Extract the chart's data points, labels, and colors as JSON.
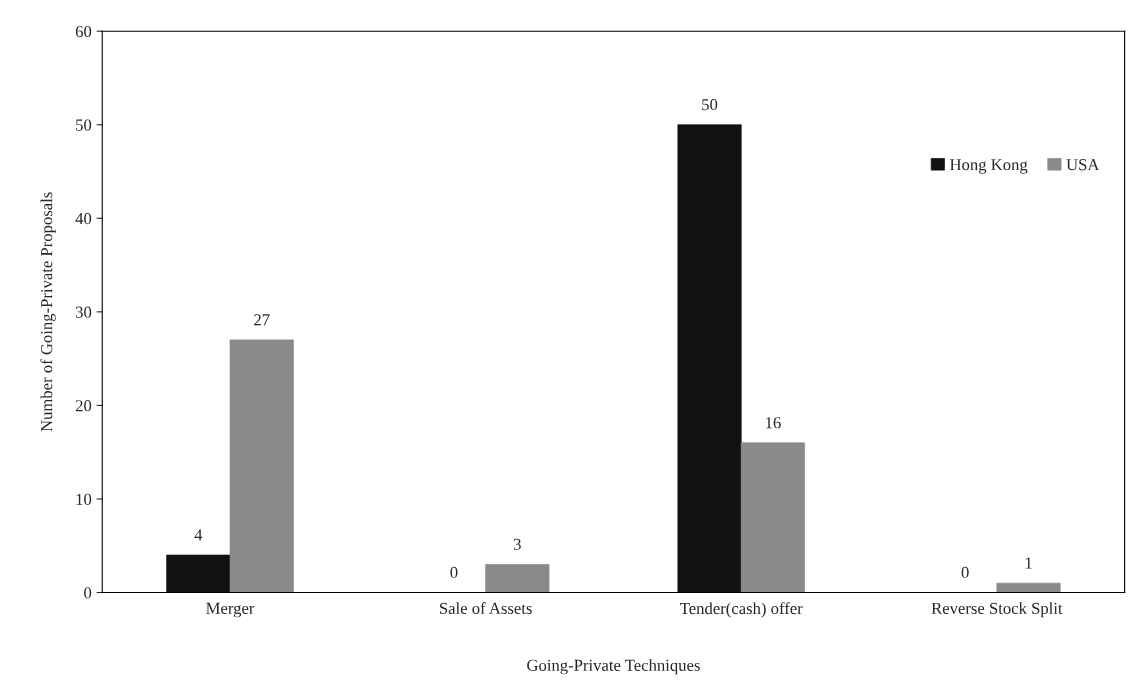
{
  "chart_data": {
    "type": "bar",
    "xlabel": "Going-Private Techniques",
    "ylabel": "Number of Going-Private Proposals",
    "categories": [
      "Merger",
      "Sale of Assets",
      "Tender(cash) offer",
      "Reverse Stock Split"
    ],
    "series": [
      {
        "name": "Hong Kong",
        "color": "#111111",
        "values": [
          4,
          0,
          50,
          0
        ]
      },
      {
        "name": "USA",
        "color": "#8a8a8a",
        "values": [
          27,
          3,
          16,
          1
        ]
      }
    ],
    "ylim": [
      0,
      60
    ],
    "yticks": [
      0,
      10,
      20,
      30,
      40,
      50,
      60
    ],
    "data_labels": true,
    "legend": "top right",
    "grid": false
  }
}
